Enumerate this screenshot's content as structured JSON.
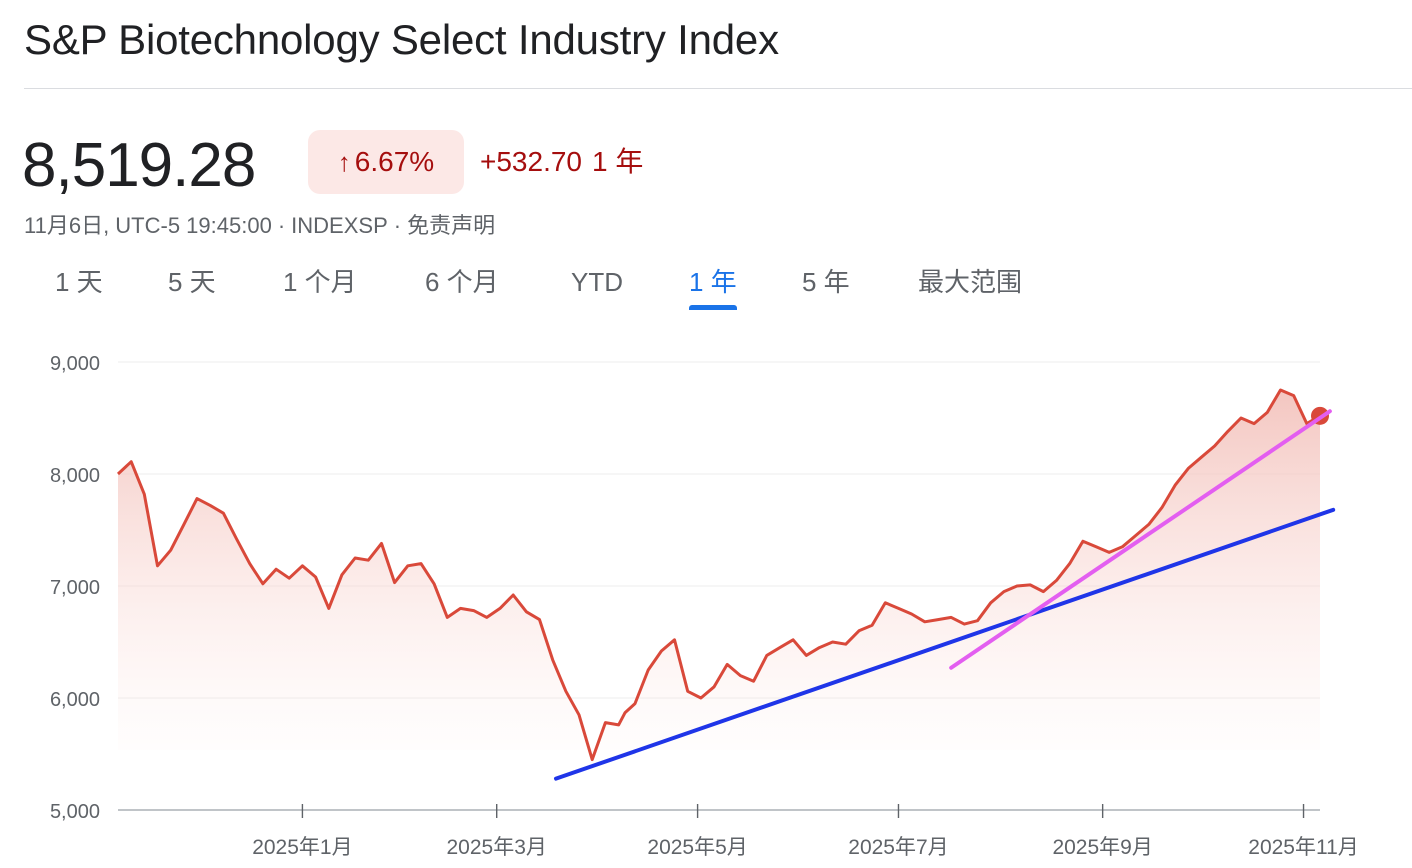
{
  "header": {
    "title": "S&P Biotechnology Select Industry Index"
  },
  "quote": {
    "price": "8,519.28",
    "change_pct": "6.67%",
    "change_abs": "+532.70",
    "period_label": "1 年",
    "meta": {
      "datetime": "11月6日, UTC-5 19:45:00",
      "exchange": "INDEXSP",
      "disclaimer": "免责声明"
    }
  },
  "icons": {
    "change_arrow": "arrow-up-icon"
  },
  "tabs": [
    {
      "label": "1 天",
      "active": false
    },
    {
      "label": "5 天",
      "active": false
    },
    {
      "label": "1 个月",
      "active": false
    },
    {
      "label": "6 个月",
      "active": false
    },
    {
      "label": "YTD",
      "active": false
    },
    {
      "label": "1 年",
      "active": true
    },
    {
      "label": "5 年",
      "active": false
    },
    {
      "label": "最大范围",
      "active": false
    }
  ],
  "colors": {
    "line": "#d9493a",
    "fill_top": "#f3c3bd",
    "trend_blue": "#1f35e8",
    "trend_magenta": "#e35ef0",
    "negative": "#a50e0e",
    "accent": "#1a73e8"
  },
  "chart_data": {
    "type": "area",
    "ylim": [
      5000,
      9000
    ],
    "yticks": [
      "5,000",
      "6,000",
      "7,000",
      "8,000",
      "9,000"
    ],
    "xticks": [
      "2025年1月",
      "2025年3月",
      "2025年5月",
      "2025年7月",
      "2025年9月",
      "2025年11月"
    ],
    "grid": true,
    "series": [
      {
        "x": [
          "2024-11-06",
          "2024-11-10",
          "2024-11-14",
          "2024-11-18",
          "2024-11-22",
          "2024-11-26",
          "2024-11-30",
          "2024-12-04",
          "2024-12-08",
          "2024-12-12",
          "2024-12-16",
          "2024-12-20",
          "2024-12-24",
          "2024-12-28",
          "2025-01-01",
          "2025-01-05",
          "2025-01-09",
          "2025-01-13",
          "2025-01-17",
          "2025-01-21",
          "2025-01-25",
          "2025-01-29",
          "2025-02-02",
          "2025-02-06",
          "2025-02-10",
          "2025-02-14",
          "2025-02-18",
          "2025-02-22",
          "2025-02-26",
          "2025-03-02",
          "2025-03-06",
          "2025-03-10",
          "2025-03-14",
          "2025-03-18",
          "2025-03-22",
          "2025-03-26",
          "2025-03-30",
          "2025-04-03",
          "2025-04-07",
          "2025-04-09",
          "2025-04-12",
          "2025-04-16",
          "2025-04-20",
          "2025-04-24",
          "2025-04-28",
          "2025-05-02",
          "2025-05-06",
          "2025-05-10",
          "2025-05-14",
          "2025-05-18",
          "2025-05-22",
          "2025-05-26",
          "2025-05-30",
          "2025-06-03",
          "2025-06-07",
          "2025-06-11",
          "2025-06-15",
          "2025-06-19",
          "2025-06-23",
          "2025-06-27",
          "2025-07-01",
          "2025-07-05",
          "2025-07-09",
          "2025-07-13",
          "2025-07-17",
          "2025-07-21",
          "2025-07-25",
          "2025-07-29",
          "2025-08-02",
          "2025-08-06",
          "2025-08-10",
          "2025-08-14",
          "2025-08-18",
          "2025-08-22",
          "2025-08-26",
          "2025-08-30",
          "2025-09-03",
          "2025-09-07",
          "2025-09-11",
          "2025-09-15",
          "2025-09-19",
          "2025-09-23",
          "2025-09-27",
          "2025-10-01",
          "2025-10-05",
          "2025-10-09",
          "2025-10-13",
          "2025-10-17",
          "2025-10-21",
          "2025-10-25",
          "2025-10-29",
          "2025-11-02",
          "2025-11-06"
        ],
        "values": [
          8000,
          8110,
          7820,
          7180,
          7320,
          7550,
          7780,
          7720,
          7650,
          7420,
          7200,
          7020,
          7150,
          7070,
          7180,
          7080,
          6800,
          7100,
          7250,
          7230,
          7380,
          7030,
          7180,
          7200,
          7020,
          6720,
          6800,
          6780,
          6720,
          6800,
          6920,
          6770,
          6700,
          6340,
          6060,
          5850,
          5450,
          5780,
          5760,
          5870,
          5950,
          6250,
          6420,
          6520,
          6060,
          6000,
          6100,
          6300,
          6200,
          6150,
          6380,
          6450,
          6520,
          6380,
          6450,
          6500,
          6480,
          6600,
          6650,
          6850,
          6800,
          6750,
          6680,
          6700,
          6720,
          6660,
          6690,
          6850,
          6950,
          7000,
          7010,
          6950,
          7050,
          7200,
          7400,
          7350,
          7300,
          7350,
          7450,
          7550,
          7700,
          7900,
          8050,
          8150,
          8250,
          8380,
          8500,
          8450,
          8550,
          8750,
          8700,
          8450,
          8519
        ]
      }
    ],
    "trendlines": [
      {
        "name": "blue",
        "start": [
          "2025-03-19",
          5280
        ],
        "end": [
          "2025-11-10",
          7680
        ]
      },
      {
        "name": "magenta",
        "start": [
          "2025-07-17",
          6270
        ],
        "end": [
          "2025-11-09",
          8560
        ]
      }
    ]
  }
}
